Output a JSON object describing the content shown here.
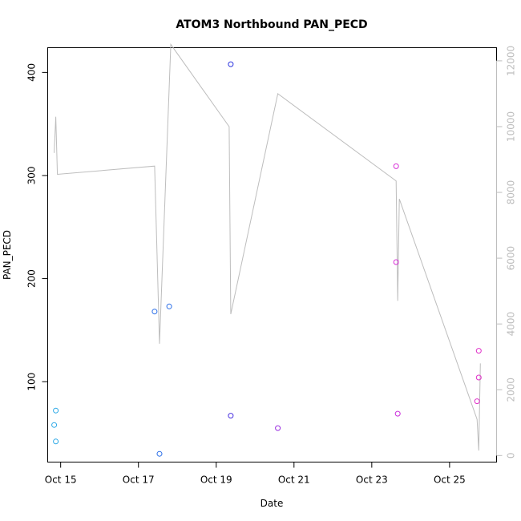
{
  "chart_data": {
    "type": "scatter",
    "title": "ATOM3 Northbound PAN_PECD",
    "xlabel": "Date",
    "ylabel": "PAN_PECD",
    "x_ticks": [
      {
        "day": 15,
        "label": "Oct 15"
      },
      {
        "day": 17,
        "label": "Oct 17"
      },
      {
        "day": 19,
        "label": "Oct 19"
      },
      {
        "day": 21,
        "label": "Oct 21"
      },
      {
        "day": 23,
        "label": "Oct 23"
      },
      {
        "day": 25,
        "label": "Oct 25"
      }
    ],
    "xlim": [
      "2023-10-14T16:00",
      "2023-10-26T05:00"
    ],
    "ylim": [
      22,
      424
    ],
    "y_ticks": [
      100,
      200,
      300,
      400
    ],
    "y2lim": [
      -200,
      12400
    ],
    "y2_ticks": [
      0,
      2000,
      4000,
      6000,
      8000,
      10000,
      12000
    ],
    "scatter_points": [
      {
        "x": "2023-10-14T20:00",
        "y": 58,
        "color": "#2ba8e6"
      },
      {
        "x": "2023-10-14T21:00",
        "y": 72,
        "color": "#2ba8e6"
      },
      {
        "x": "2023-10-14T21:00",
        "y": 42,
        "color": "#2ba8e6"
      },
      {
        "x": "2023-10-17T10:00",
        "y": 168,
        "color": "#2a6ee8"
      },
      {
        "x": "2023-10-17T13:00",
        "y": 30,
        "color": "#2a6ee8"
      },
      {
        "x": "2023-10-17T19:00",
        "y": 173,
        "color": "#2a6ee8"
      },
      {
        "x": "2023-10-19T09:00",
        "y": 408,
        "color": "#2d36e0"
      },
      {
        "x": "2023-10-19T09:00",
        "y": 67,
        "color": "#4a32e0"
      },
      {
        "x": "2023-10-20T14:00",
        "y": 55,
        "color": "#9a2fe0"
      },
      {
        "x": "2023-10-23T15:00",
        "y": 309,
        "color": "#d82fd8"
      },
      {
        "x": "2023-10-23T15:00",
        "y": 216,
        "color": "#d82fd8"
      },
      {
        "x": "2023-10-23T16:00",
        "y": 69,
        "color": "#cc30dc"
      },
      {
        "x": "2023-10-25T17:00",
        "y": 81,
        "color": "#e02fc8"
      },
      {
        "x": "2023-10-25T18:00",
        "y": 130,
        "color": "#e02fc8"
      },
      {
        "x": "2023-10-25T18:00",
        "y": 104,
        "color": "#e02fc8"
      }
    ],
    "line_series": {
      "axis": "right",
      "color": "#bdbdbd",
      "points": [
        {
          "x": "2023-10-14T20:00",
          "y": 9200
        },
        {
          "x": "2023-10-14T21:00",
          "y": 10300
        },
        {
          "x": "2023-10-14T22:00",
          "y": 8550
        },
        {
          "x": "2023-10-17T10:00",
          "y": 8800
        },
        {
          "x": "2023-10-17T13:00",
          "y": 3400
        },
        {
          "x": "2023-10-17T20:00",
          "y": 12500
        },
        {
          "x": "2023-10-19T08:00",
          "y": 10000
        },
        {
          "x": "2023-10-19T09:00",
          "y": 4300
        },
        {
          "x": "2023-10-20T14:00",
          "y": 11000
        },
        {
          "x": "2023-10-23T15:00",
          "y": 8350
        },
        {
          "x": "2023-10-23T16:00",
          "y": 4700
        },
        {
          "x": "2023-10-23T17:00",
          "y": 7800
        },
        {
          "x": "2023-10-25T17:00",
          "y": 1100
        },
        {
          "x": "2023-10-25T18:00",
          "y": 150
        },
        {
          "x": "2023-10-25T19:00",
          "y": 2800
        }
      ]
    },
    "grid": false,
    "legend": "none"
  }
}
